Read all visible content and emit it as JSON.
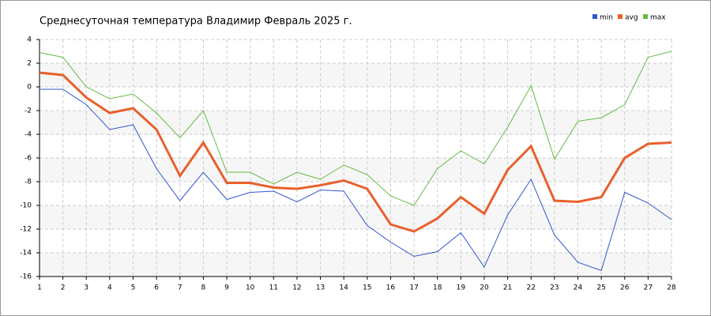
{
  "chart_data": {
    "type": "line",
    "title": "Среднесуточная температура Владимир  Февраль 2025 г.",
    "x": [
      1,
      2,
      3,
      4,
      5,
      6,
      7,
      8,
      9,
      10,
      11,
      12,
      13,
      14,
      15,
      16,
      17,
      18,
      19,
      20,
      21,
      22,
      23,
      24,
      25,
      26,
      27,
      28
    ],
    "xlim": [
      1,
      28
    ],
    "xticks": [
      1,
      2,
      3,
      4,
      5,
      6,
      7,
      8,
      9,
      10,
      11,
      12,
      13,
      14,
      15,
      16,
      17,
      18,
      19,
      20,
      21,
      22,
      23,
      24,
      25,
      26,
      27,
      28
    ],
    "ylim": [
      -16,
      4
    ],
    "yticks": [
      -16,
      -14,
      -12,
      -10,
      -8,
      -6,
      -4,
      -2,
      0,
      2,
      4
    ],
    "grid": true,
    "legend": "top-right",
    "series": [
      {
        "name": "min",
        "color": "#3355cc",
        "values": [
          -0.2,
          -0.2,
          -1.5,
          -3.6,
          -3.2,
          -6.9,
          -9.6,
          -7.2,
          -9.5,
          -8.9,
          -8.8,
          -9.7,
          -8.7,
          -8.8,
          -11.7,
          -13.1,
          -14.3,
          -13.9,
          -12.3,
          -15.2,
          -10.8,
          -7.8,
          -12.5,
          -14.8,
          -15.5,
          -8.9,
          -9.8,
          -11.2
        ]
      },
      {
        "name": "avg",
        "color": "#e8602c",
        "values": [
          1.2,
          1.0,
          -0.9,
          -2.2,
          -1.8,
          -3.6,
          -7.5,
          -4.7,
          -8.1,
          -8.1,
          -8.5,
          -8.6,
          -8.3,
          -7.9,
          -8.6,
          -11.6,
          -12.2,
          -11.1,
          -9.3,
          -10.7,
          -7.0,
          -5.0,
          -9.6,
          -9.7,
          -9.3,
          -6.0,
          -4.8,
          -4.7
        ]
      },
      {
        "name": "max",
        "color": "#66bb44",
        "values": [
          2.9,
          2.5,
          0,
          -1.0,
          -0.6,
          -2.2,
          -4.3,
          -2.0,
          -7.2,
          -7.2,
          -8.2,
          -7.2,
          -7.8,
          -6.6,
          -7.4,
          -9.2,
          -10.0,
          -6.9,
          -5.4,
          -6.5,
          -3.4,
          0.1,
          -6.1,
          -2.9,
          -2.6,
          -1.5,
          2.5,
          3.0
        ]
      }
    ]
  }
}
